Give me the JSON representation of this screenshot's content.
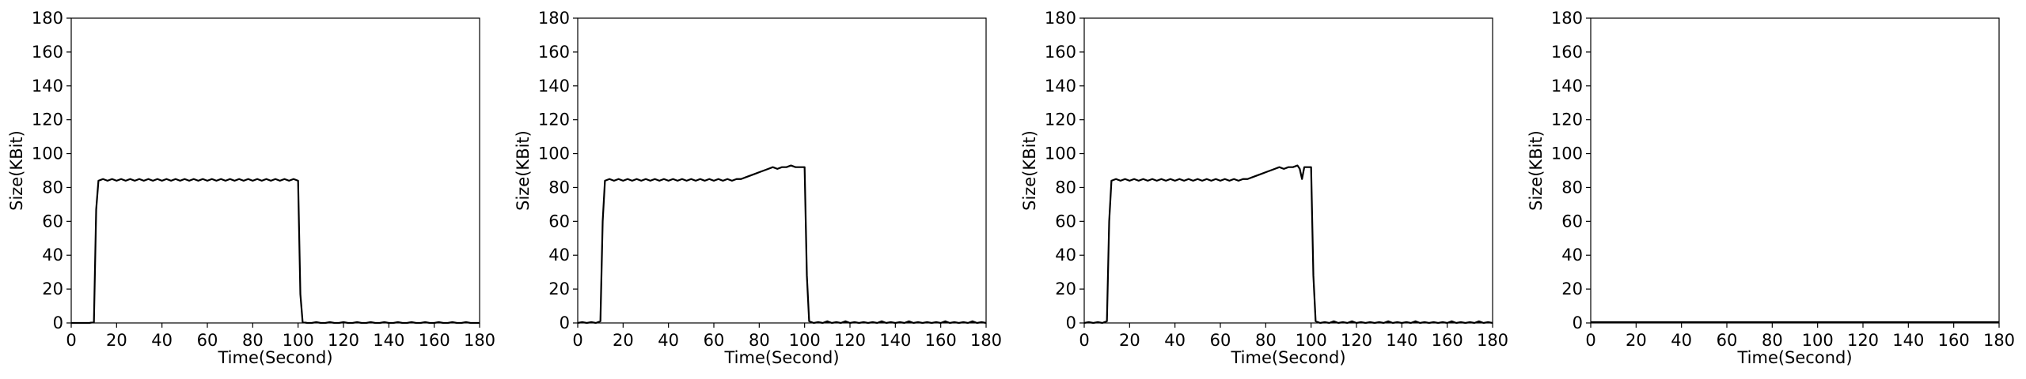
{
  "chart_data": [
    {
      "type": "line",
      "xlabel": "Time(Second)",
      "ylabel": "Size(KBit)",
      "xlim": [
        0,
        180
      ],
      "ylim": [
        0,
        180
      ],
      "xticks": [
        0,
        20,
        40,
        60,
        80,
        100,
        120,
        140,
        160,
        180
      ],
      "yticks": [
        0,
        20,
        40,
        60,
        80,
        100,
        120,
        140,
        160,
        180
      ],
      "grid": false,
      "line_color": "#000000",
      "series": [
        {
          "x": [
            0,
            2,
            4,
            6,
            8,
            10,
            11,
            12,
            14,
            16,
            18,
            20,
            22,
            24,
            26,
            28,
            30,
            32,
            34,
            36,
            38,
            40,
            42,
            44,
            46,
            48,
            50,
            52,
            54,
            56,
            58,
            60,
            62,
            64,
            66,
            68,
            70,
            72,
            74,
            76,
            78,
            80,
            82,
            84,
            86,
            88,
            90,
            92,
            94,
            96,
            98,
            100,
            101,
            102,
            104,
            106,
            108,
            110,
            112,
            114,
            116,
            118,
            120,
            122,
            124,
            126,
            128,
            130,
            132,
            134,
            136,
            138,
            140,
            142,
            144,
            146,
            148,
            150,
            152,
            154,
            156,
            158,
            160,
            162,
            164,
            166,
            168,
            170,
            172,
            174,
            176,
            178,
            180
          ],
          "y": [
            0,
            0,
            0,
            0,
            0,
            0.5,
            67,
            84,
            85,
            84,
            85,
            84,
            85,
            84,
            85,
            84,
            85,
            84,
            85,
            84,
            85,
            84,
            85,
            84,
            85,
            84,
            85,
            84,
            85,
            84,
            85,
            84,
            85,
            84,
            85,
            84,
            85,
            84,
            85,
            84,
            85,
            84,
            85,
            84,
            85,
            84,
            85,
            84,
            85,
            84,
            85,
            84,
            17,
            0.5,
            0,
            0,
            0.5,
            0,
            0,
            0.5,
            0,
            0,
            0.5,
            0,
            0,
            0.5,
            0,
            0,
            0.5,
            0,
            0,
            0.5,
            0,
            0,
            0.5,
            0,
            0,
            0.5,
            0,
            0,
            0.5,
            0,
            0,
            0.5,
            0,
            0,
            0.5,
            0,
            0,
            0.5,
            0,
            0,
            0
          ]
        }
      ]
    },
    {
      "type": "line",
      "xlabel": "Time(Second)",
      "ylabel": "Size(KBit)",
      "xlim": [
        0,
        180
      ],
      "ylim": [
        0,
        180
      ],
      "xticks": [
        0,
        20,
        40,
        60,
        80,
        100,
        120,
        140,
        160,
        180
      ],
      "yticks": [
        0,
        20,
        40,
        60,
        80,
        100,
        120,
        140,
        160,
        180
      ],
      "grid": false,
      "line_color": "#000000",
      "series": [
        {
          "x": [
            0,
            2,
            4,
            6,
            8,
            10,
            11,
            12,
            14,
            16,
            18,
            20,
            22,
            24,
            26,
            28,
            30,
            32,
            34,
            36,
            38,
            40,
            42,
            44,
            46,
            48,
            50,
            52,
            54,
            56,
            58,
            60,
            62,
            64,
            66,
            68,
            70,
            72,
            74,
            76,
            78,
            80,
            82,
            84,
            86,
            88,
            90,
            92,
            94,
            96,
            98,
            100,
            101,
            102,
            104,
            106,
            108,
            110,
            112,
            114,
            116,
            118,
            120,
            122,
            124,
            126,
            128,
            130,
            132,
            134,
            136,
            138,
            140,
            142,
            144,
            146,
            148,
            150,
            152,
            154,
            156,
            158,
            160,
            162,
            164,
            166,
            168,
            170,
            172,
            174,
            176,
            178,
            180
          ],
          "y": [
            0,
            0.5,
            0,
            0.5,
            0,
            1,
            60,
            84,
            85,
            84,
            85,
            84,
            85,
            84,
            85,
            84,
            85,
            84,
            85,
            84,
            85,
            84,
            85,
            84,
            85,
            84,
            85,
            84,
            85,
            84,
            85,
            84,
            85,
            84,
            85,
            84,
            85,
            85,
            86,
            87,
            88,
            89,
            90,
            91,
            92,
            91,
            92,
            92,
            93,
            92,
            92,
            92,
            28,
            1,
            0,
            0.5,
            0,
            1,
            0,
            0.5,
            0,
            1,
            0,
            0.5,
            0,
            0.5,
            0,
            0.5,
            0,
            1,
            0,
            0.5,
            0,
            0.5,
            0,
            1,
            0,
            0.5,
            0,
            0.5,
            0,
            0.5,
            0,
            1,
            0,
            0.5,
            0,
            0.5,
            0,
            1,
            0,
            0.5,
            0
          ]
        }
      ]
    },
    {
      "type": "line",
      "xlabel": "Time(Second)",
      "ylabel": "Size(KBit)",
      "xlim": [
        0,
        180
      ],
      "ylim": [
        0,
        180
      ],
      "xticks": [
        0,
        20,
        40,
        60,
        80,
        100,
        120,
        140,
        160,
        180
      ],
      "yticks": [
        0,
        20,
        40,
        60,
        80,
        100,
        120,
        140,
        160,
        180
      ],
      "grid": false,
      "line_color": "#000000",
      "series": [
        {
          "x": [
            0,
            2,
            4,
            6,
            8,
            10,
            11,
            12,
            14,
            16,
            18,
            20,
            22,
            24,
            26,
            28,
            30,
            32,
            34,
            36,
            38,
            40,
            42,
            44,
            46,
            48,
            50,
            52,
            54,
            56,
            58,
            60,
            62,
            64,
            66,
            68,
            70,
            72,
            74,
            76,
            78,
            80,
            82,
            84,
            86,
            88,
            90,
            92,
            94,
            95,
            96,
            97,
            98,
            100,
            101,
            102,
            104,
            106,
            108,
            110,
            112,
            114,
            116,
            118,
            120,
            122,
            124,
            126,
            128,
            130,
            132,
            134,
            136,
            138,
            140,
            142,
            144,
            146,
            148,
            150,
            152,
            154,
            156,
            158,
            160,
            162,
            164,
            166,
            168,
            170,
            172,
            174,
            176,
            178,
            180
          ],
          "y": [
            0,
            0.5,
            0,
            0.5,
            0,
            1,
            60,
            84,
            85,
            84,
            85,
            84,
            85,
            84,
            85,
            84,
            85,
            84,
            85,
            84,
            85,
            84,
            85,
            84,
            85,
            84,
            85,
            84,
            85,
            84,
            85,
            84,
            85,
            84,
            85,
            84,
            85,
            85,
            86,
            87,
            88,
            89,
            90,
            91,
            92,
            91,
            92,
            92,
            93,
            91,
            85,
            92,
            92,
            92,
            28,
            1,
            0,
            0.5,
            0,
            1,
            0,
            0.5,
            0,
            1,
            0,
            0.5,
            0,
            0.5,
            0,
            0.5,
            0,
            1,
            0,
            0.5,
            0,
            0.5,
            0,
            1,
            0,
            0.5,
            0,
            0.5,
            0,
            0.5,
            0,
            1,
            0,
            0.5,
            0,
            0.5,
            0,
            1,
            0,
            0.5,
            0
          ]
        }
      ]
    },
    {
      "type": "line",
      "xlabel": "Time(Second)",
      "ylabel": "Size(KBit)",
      "xlim": [
        0,
        180
      ],
      "ylim": [
        0,
        180
      ],
      "xticks": [
        0,
        20,
        40,
        60,
        80,
        100,
        120,
        140,
        160,
        180
      ],
      "yticks": [
        0,
        20,
        40,
        60,
        80,
        100,
        120,
        140,
        160,
        180
      ],
      "grid": false,
      "line_color": "#000000",
      "series": [
        {
          "x": [
            0,
            10,
            20,
            30,
            40,
            50,
            60,
            70,
            80,
            90,
            100,
            110,
            120,
            130,
            140,
            150,
            160,
            170,
            180
          ],
          "y": [
            0.5,
            0.5,
            0.5,
            0.5,
            0.5,
            0.5,
            0.5,
            0.5,
            0.5,
            0.5,
            0.5,
            0.5,
            0.5,
            0.5,
            0.5,
            0.5,
            0.5,
            0.5,
            0.5
          ]
        }
      ]
    }
  ]
}
